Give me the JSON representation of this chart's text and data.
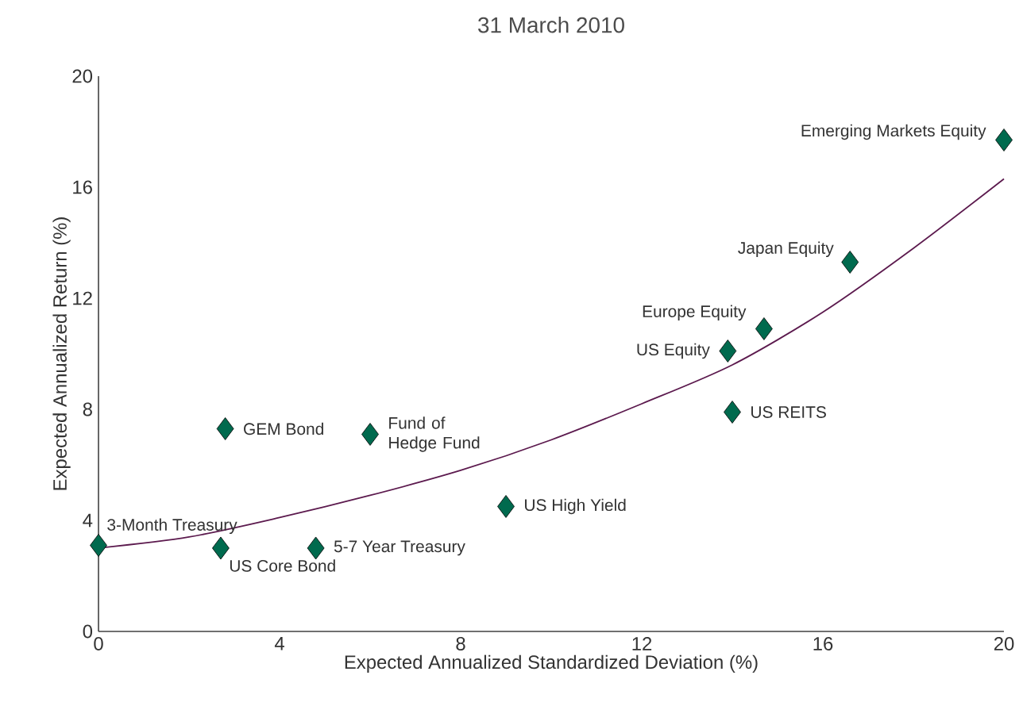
{
  "chart_data": {
    "type": "scatter",
    "title": "31 March 2010",
    "xlabel": "Expected Annualized Standardized Deviation (%)",
    "ylabel": "Expected Annualized Return (%)",
    "xlim": [
      0,
      20
    ],
    "ylim": [
      0,
      20
    ],
    "xticks": [
      0,
      4,
      8,
      12,
      16,
      20
    ],
    "yticks": [
      0,
      4,
      8,
      12,
      16,
      20
    ],
    "series": [
      {
        "marker": "diamond",
        "color": "#006a4e",
        "x": [
          0,
          2.7,
          2.8,
          6.0,
          4.8,
          9.0,
          13.9,
          14.7,
          14.0,
          16.6,
          20
        ],
        "values": [
          3.1,
          3.0,
          7.3,
          7.1,
          3.0,
          4.5,
          10.1,
          10.9,
          7.9,
          13.3,
          17.7
        ]
      },
      {
        "type": "line",
        "color": "#5c1a4e",
        "x": [
          0,
          2,
          4,
          6,
          8,
          10,
          12,
          14,
          16,
          18,
          20
        ],
        "values": [
          3.0,
          3.4,
          4.1,
          4.9,
          5.8,
          6.9,
          8.2,
          9.6,
          11.5,
          13.8,
          16.3
        ]
      }
    ],
    "annotations": [
      {
        "text": "3-Month Treasury",
        "x": 0,
        "y": 3.1
      },
      {
        "text": "US Core Bond",
        "x": 2.7,
        "y": 3.0
      },
      {
        "text": "GEM Bond",
        "x": 2.8,
        "y": 7.3
      },
      {
        "text": "Fund of Hedge Fund",
        "x": 6.0,
        "y": 7.1
      },
      {
        "text": "5-7 Year Treasury",
        "x": 4.8,
        "y": 3.0
      },
      {
        "text": "US High Yield",
        "x": 9.0,
        "y": 4.5
      },
      {
        "text": "US Equity",
        "x": 13.9,
        "y": 10.1
      },
      {
        "text": "Europe Equity",
        "x": 14.7,
        "y": 10.9
      },
      {
        "text": "US REITS",
        "x": 14.0,
        "y": 7.9
      },
      {
        "text": "Japan Equity",
        "x": 16.6,
        "y": 13.3
      },
      {
        "text": "Emerging Markets Equity",
        "x": 20,
        "y": 17.7
      }
    ]
  }
}
